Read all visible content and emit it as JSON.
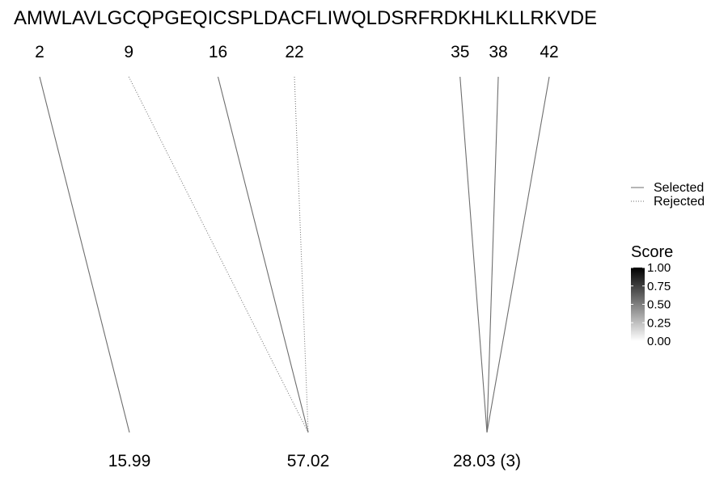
{
  "chart_data": {
    "type": "line",
    "sequence": "AMWLAVLGCQPGEQICSPLDACFLIWQLDSRFRDKHLKLLRKVDE",
    "positions": [
      "2",
      "9",
      "16",
      "22",
      "35",
      "38",
      "42"
    ],
    "masses": [
      "15.99",
      "57.02",
      "28.03 (3)"
    ],
    "links": [
      {
        "from": "2",
        "to": "15.99",
        "status": "Selected"
      },
      {
        "from": "9",
        "to": "57.02",
        "status": "Rejected"
      },
      {
        "from": "16",
        "to": "57.02",
        "status": "Selected"
      },
      {
        "from": "22",
        "to": "57.02",
        "status": "Rejected"
      },
      {
        "from": "35",
        "to": "28.03 (3)",
        "status": "Selected"
      },
      {
        "from": "38",
        "to": "28.03 (3)",
        "status": "Selected"
      },
      {
        "from": "42",
        "to": "28.03 (3)",
        "status": "Selected"
      }
    ],
    "legend": [
      "Selected",
      "Rejected"
    ],
    "score_scale": {
      "title": "Score",
      "ticks": [
        "1.00",
        "0.75",
        "0.50",
        "0.25",
        "0.00"
      ],
      "range": [
        0,
        1
      ],
      "colors": [
        "#ffffff",
        "#000000"
      ]
    },
    "line_color": "#6e6e6e"
  }
}
